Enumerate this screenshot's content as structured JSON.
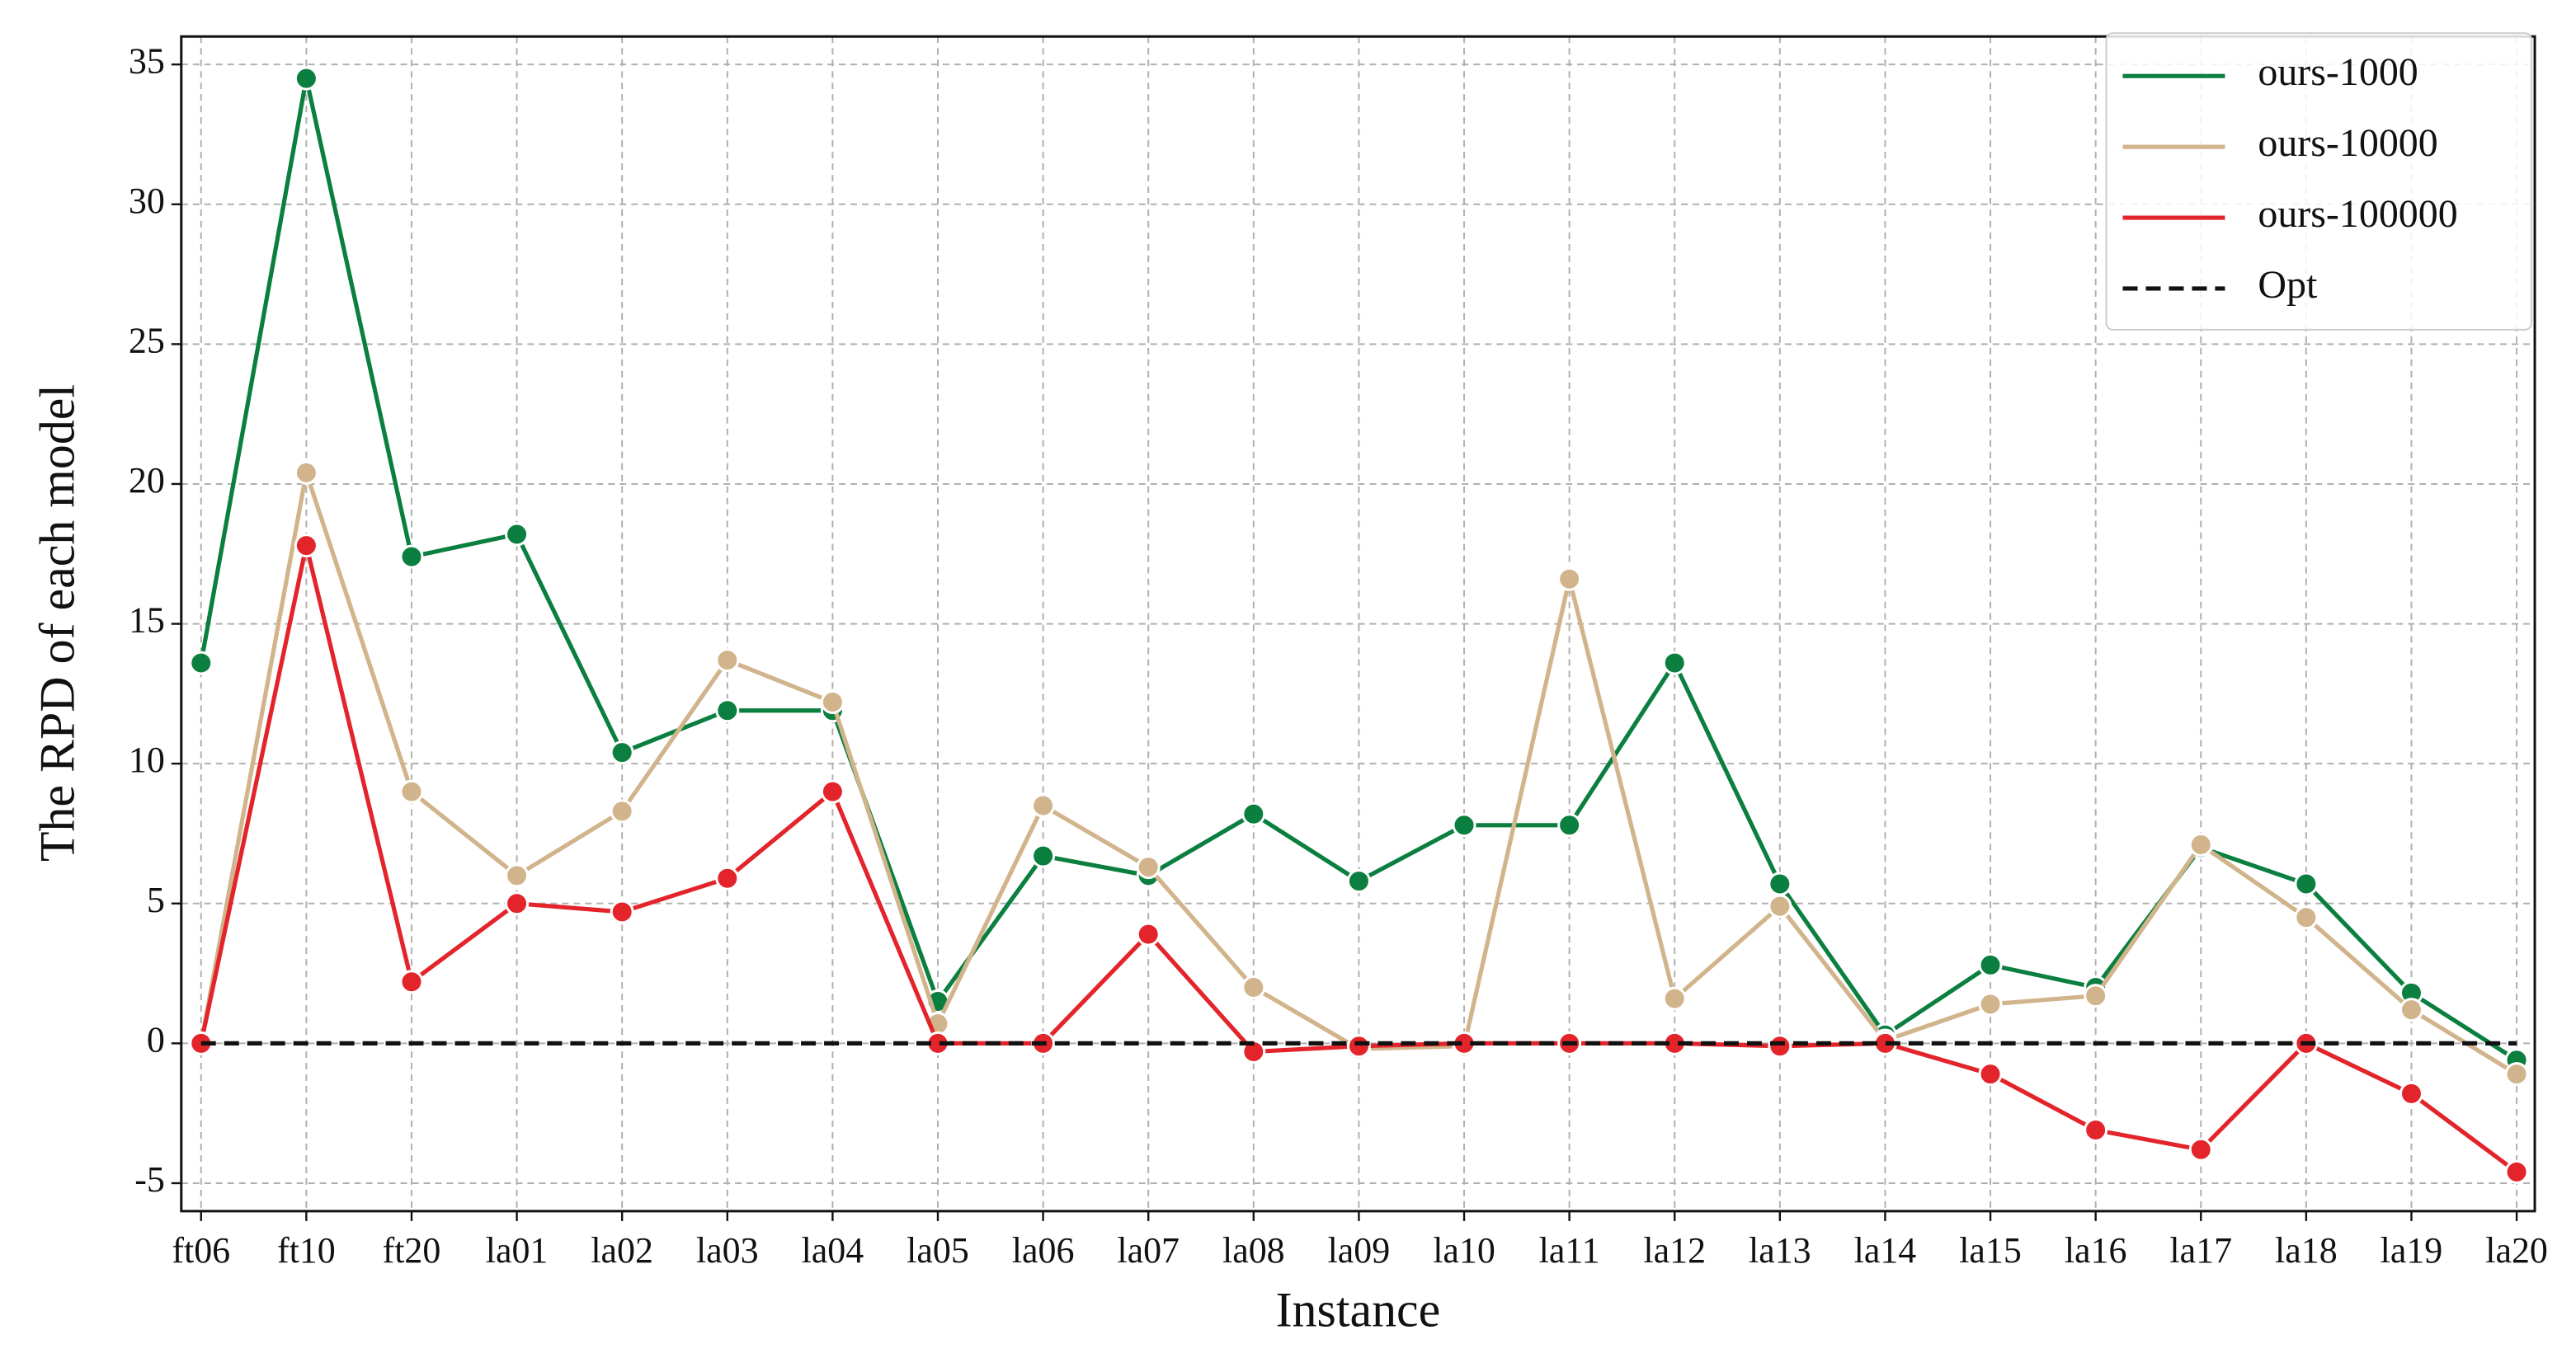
{
  "chart_data": {
    "type": "line",
    "x_label": "Instance",
    "y_label": "The RPD of each model",
    "categories": [
      "ft06",
      "ft10",
      "ft20",
      "la01",
      "la02",
      "la03",
      "la04",
      "la05",
      "la06",
      "la07",
      "la08",
      "la09",
      "la10",
      "la11",
      "la12",
      "la13",
      "la14",
      "la15",
      "la16",
      "la17",
      "la18",
      "la19",
      "la20"
    ],
    "series": [
      {
        "name": "ours-1000",
        "color": "#0a7f3f",
        "markers": true,
        "dashed": false,
        "values": [
          13.6,
          34.5,
          17.4,
          18.2,
          10.4,
          11.9,
          11.9,
          1.5,
          6.7,
          6.0,
          8.2,
          5.8,
          7.8,
          7.8,
          13.6,
          5.7,
          0.3,
          2.8,
          2.0,
          7.0,
          5.7,
          1.8,
          -0.6
        ]
      },
      {
        "name": "ours-10000",
        "color": "#d2b48c",
        "markers": true,
        "dashed": false,
        "values": [
          0,
          20.4,
          9.0,
          6.0,
          8.3,
          13.7,
          12.2,
          0.7,
          8.5,
          6.3,
          2.0,
          -0.2,
          -0.1,
          16.6,
          1.6,
          4.9,
          0.1,
          1.4,
          1.7,
          7.1,
          4.5,
          1.2,
          -1.1
        ]
      },
      {
        "name": "ours-100000",
        "color": "#e3242b",
        "markers": true,
        "dashed": false,
        "values": [
          0,
          17.8,
          2.2,
          5.0,
          4.7,
          5.9,
          9.0,
          0,
          0,
          3.9,
          -0.3,
          -0.1,
          0,
          0,
          0,
          -0.1,
          0,
          -1.1,
          -3.1,
          -3.8,
          0,
          -1.8,
          -4.6
        ]
      },
      {
        "name": "Opt",
        "color": "#111111",
        "markers": false,
        "dashed": true,
        "values": [
          0,
          0,
          0,
          0,
          0,
          0,
          0,
          0,
          0,
          0,
          0,
          0,
          0,
          0,
          0,
          0,
          0,
          0,
          0,
          0,
          0,
          0,
          0
        ]
      }
    ],
    "ylim": [
      -6,
      36
    ],
    "yticks": [
      -5,
      0,
      5,
      10,
      15,
      20,
      25,
      30,
      35
    ],
    "grid": true,
    "legend": "upper right"
  }
}
